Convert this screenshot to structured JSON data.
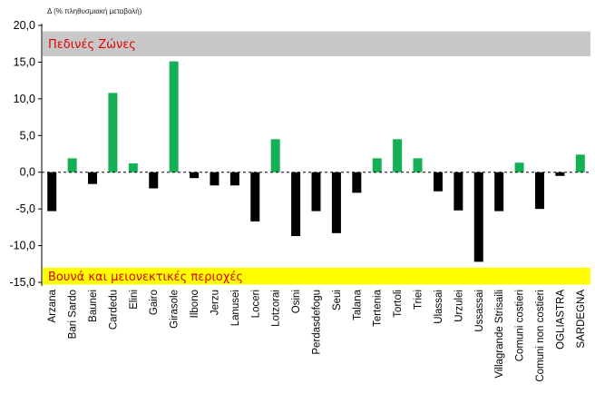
{
  "chart_data": {
    "type": "bar",
    "ylabel": "Δ (% πληθυσμιακή μεταβολή)",
    "ylim": [
      -15,
      20
    ],
    "yticks": [
      "20,0",
      "15,0",
      "10,0",
      "5,0",
      "0,0",
      "-5,0",
      "-10,0",
      "-15,0"
    ],
    "ytick_values": [
      20,
      15,
      10,
      5,
      0,
      -5,
      -10,
      -15
    ],
    "categories": [
      "Arzana",
      "Bari Sardo",
      "Baunei",
      "Cardedu",
      "Elini",
      "Gairo",
      "Girasole",
      "Ilbono",
      "Jerzu",
      "Lanusei",
      "Loceri",
      "Lotzorai",
      "Osini",
      "Perdasdefogu",
      "Seui",
      "Talana",
      "Tertenia",
      "Tortoli",
      "Triei",
      "Ulassai",
      "Urzulei",
      "Ussassai",
      "Villagrande Strisaili",
      "Comuni costieri",
      "Comuni non costieri",
      "OGLIASTRA",
      "SARDEGNA"
    ],
    "values": [
      -5.3,
      1.9,
      -1.6,
      10.8,
      1.2,
      -2.2,
      15.1,
      -0.8,
      -1.8,
      -1.8,
      -6.7,
      4.5,
      -8.7,
      -5.3,
      -8.3,
      -2.8,
      1.9,
      4.5,
      1.9,
      -2.6,
      -5.2,
      -12.2,
      -5.3,
      1.3,
      -5.0,
      -0.5,
      2.4
    ],
    "colors": [
      "#000000",
      "#14b055",
      "#000000",
      "#14b055",
      "#14b055",
      "#000000",
      "#14b055",
      "#000000",
      "#000000",
      "#000000",
      "#000000",
      "#14b055",
      "#000000",
      "#000000",
      "#000000",
      "#000000",
      "#14b055",
      "#14b055",
      "#14b055",
      "#000000",
      "#000000",
      "#000000",
      "#000000",
      "#14b055",
      "#000000",
      "#000000",
      "#14b055"
    ],
    "annotations": [
      {
        "text": "Πεδινές Ζώνες",
        "band": "top",
        "fill": "#c8c8c8",
        "text_color": "#e00000"
      },
      {
        "text": "Βουνά και μειονεκτικές περιοχές",
        "band": "bottom",
        "fill": "#ffff00",
        "text_color": "#e00000"
      }
    ],
    "grid": false
  }
}
